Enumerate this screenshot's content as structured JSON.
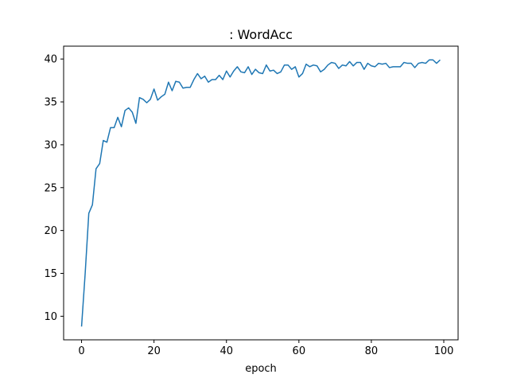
{
  "chart_data": {
    "type": "line",
    "title": ": WordAcc",
    "xlabel": "epoch",
    "ylabel": "",
    "xlim": [
      -4.95,
      103.95
    ],
    "ylim": [
      7.25,
      41.5
    ],
    "xticks": [
      0,
      20,
      40,
      60,
      80,
      100
    ],
    "yticks": [
      10,
      15,
      20,
      25,
      30,
      35,
      40
    ],
    "grid": false,
    "series": [
      {
        "color": "#1f77b4",
        "x": [
          0,
          1,
          2,
          3,
          4,
          5,
          6,
          7,
          8,
          9,
          10,
          11,
          12,
          13,
          14,
          15,
          16,
          17,
          18,
          19,
          20,
          21,
          22,
          23,
          24,
          25,
          26,
          27,
          28,
          29,
          30,
          31,
          32,
          33,
          34,
          35,
          36,
          37,
          38,
          39,
          40,
          41,
          42,
          43,
          44,
          45,
          46,
          47,
          48,
          49,
          50,
          51,
          52,
          53,
          54,
          55,
          56,
          57,
          58,
          59,
          60,
          61,
          62,
          63,
          64,
          65,
          66,
          67,
          68,
          69,
          70,
          71,
          72,
          73,
          74,
          75,
          76,
          77,
          78,
          79,
          80,
          81,
          82,
          83,
          84,
          85,
          86,
          87,
          88,
          89,
          90,
          91,
          92,
          93,
          94,
          95,
          96,
          97,
          98,
          99
        ],
        "values": [
          8.8,
          15.0,
          22.0,
          23.0,
          27.2,
          27.8,
          30.5,
          30.3,
          32.0,
          32.0,
          33.2,
          32.1,
          34.0,
          34.3,
          33.8,
          32.5,
          35.5,
          35.3,
          34.9,
          35.3,
          36.5,
          35.2,
          35.6,
          35.9,
          37.3,
          36.3,
          37.4,
          37.3,
          36.6,
          36.7,
          36.7,
          37.6,
          38.3,
          37.7,
          38.0,
          37.3,
          37.6,
          37.6,
          38.1,
          37.6,
          38.6,
          37.9,
          38.6,
          39.1,
          38.5,
          38.4,
          39.1,
          38.2,
          38.8,
          38.4,
          38.3,
          39.3,
          38.6,
          38.7,
          38.3,
          38.5,
          39.3,
          39.3,
          38.8,
          39.1,
          37.9,
          38.3,
          39.4,
          39.1,
          39.3,
          39.2,
          38.5,
          38.8,
          39.3,
          39.6,
          39.5,
          38.9,
          39.3,
          39.2,
          39.7,
          39.2,
          39.6,
          39.6,
          38.8,
          39.5,
          39.2,
          39.1,
          39.5,
          39.4,
          39.5,
          39.0,
          39.1,
          39.1,
          39.1,
          39.6,
          39.5,
          39.5,
          39.0,
          39.5,
          39.6,
          39.5,
          39.9,
          39.9,
          39.5,
          39.9
        ]
      }
    ]
  }
}
